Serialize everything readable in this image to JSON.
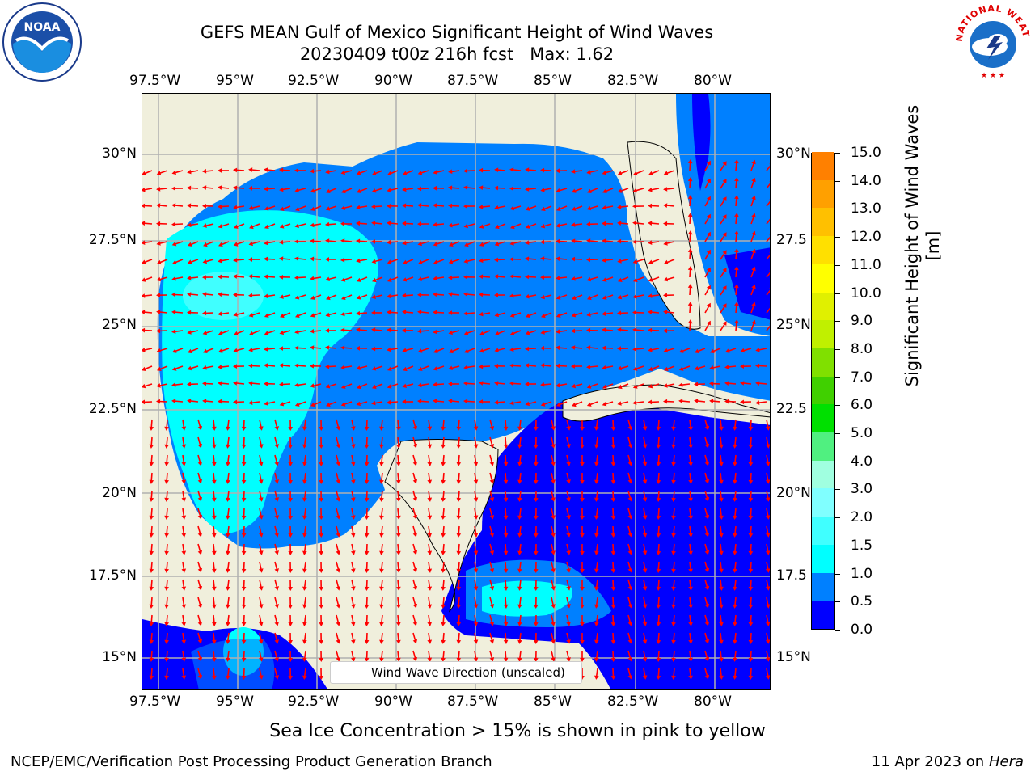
{
  "header": {
    "title_line1": "GEFS MEAN Gulf of Mexico Significant Height of Wind Waves",
    "title_line2": "20230409 t00z 216h fcst   Max: 1.62"
  },
  "logos": {
    "left_text": "NOAA",
    "left_ring_text": "NATIONAL OCEANIC AND ATMOSPHERIC ADMINISTRATION · U.S. DEPARTMENT OF COMMERCE",
    "right_ring_text": "NATIONAL WEATHER SERVICE"
  },
  "map": {
    "lon_labels": [
      "97.5°W",
      "95°W",
      "92.5°W",
      "90°W",
      "87.5°W",
      "85°W",
      "82.5°W",
      "80°W"
    ],
    "lat_labels": [
      "30°N",
      "27.5°N",
      "25°N",
      "22.5°N",
      "20°N",
      "17.5°N",
      "15°N"
    ],
    "lat_labels_right": [
      "30°N",
      "27.5",
      "25°N",
      "22.5",
      "20°N",
      "17.5",
      "15°N"
    ],
    "legend_label": "Wind Wave Direction (unscaled)",
    "land_color": "#f0efdc",
    "arrow_color": "#ff0000"
  },
  "colorbar": {
    "ticks": [
      "0.0",
      "0.5",
      "1.0",
      "1.5",
      "2.0",
      "3.0",
      "4.0",
      "5.0",
      "6.0",
      "7.0",
      "8.0",
      "9.0",
      "10.0",
      "11.0",
      "12.0",
      "13.0",
      "14.0",
      "15.0"
    ],
    "colors": [
      "#0000ff",
      "#0080ff",
      "#00ffff",
      "#40ffff",
      "#80ffff",
      "#a0ffe0",
      "#50f080",
      "#00e000",
      "#40d000",
      "#80e000",
      "#c0f000",
      "#e0f000",
      "#ffff00",
      "#ffe000",
      "#ffc000",
      "#ffa000",
      "#ff8000",
      "#ff4000",
      "#ff0000"
    ],
    "label": "Significant Height of Wind Waves [m]"
  },
  "footer": {
    "ice_note": "Sea Ice Concentration > 15% is shown in pink to yellow",
    "left": "NCEP/EMC/Verification Post Processing Product Generation Branch",
    "right_date": "11 Apr 2023 on ",
    "right_host": "Hera"
  }
}
